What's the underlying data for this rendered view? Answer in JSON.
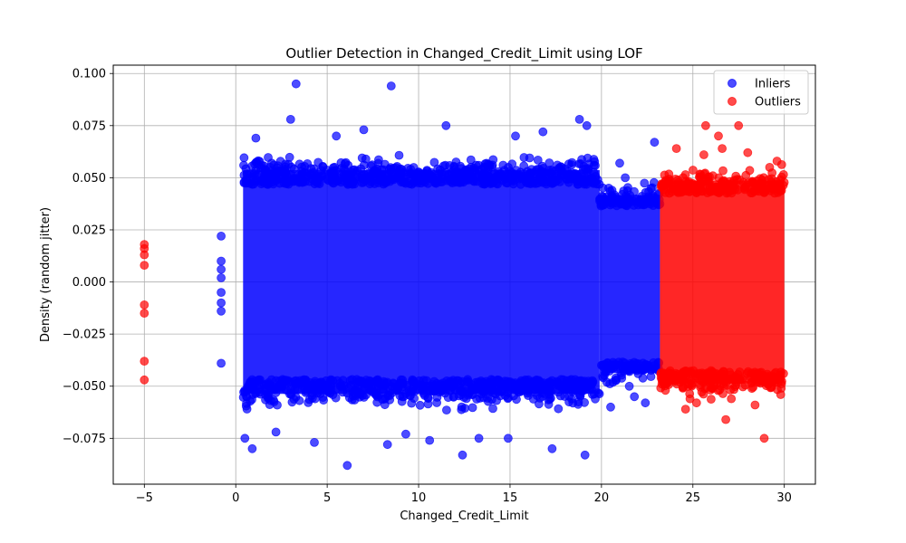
{
  "chart_data": {
    "type": "scatter",
    "title": "Outlier Detection in Changed_Credit_Limit using LOF",
    "xlabel": "Changed_Credit_Limit",
    "ylabel": "Density (random jitter)",
    "xlim": [
      -6.7,
      31.7
    ],
    "ylim": [
      -0.097,
      0.104
    ],
    "xticks": [
      -5,
      0,
      5,
      10,
      15,
      20,
      25,
      30
    ],
    "xtick_labels": [
      "−5",
      "0",
      "5",
      "10",
      "15",
      "20",
      "25",
      "30"
    ],
    "yticks": [
      -0.075,
      -0.05,
      -0.025,
      0.0,
      0.025,
      0.05,
      0.075,
      0.1
    ],
    "ytick_labels": [
      "−0.075",
      "−0.050",
      "−0.025",
      "0.000",
      "0.025",
      "0.050",
      "0.075",
      "0.100"
    ],
    "grid": true,
    "legend_position": "top-right",
    "series": [
      {
        "name": "Inliers",
        "color": "#0000ff",
        "dense_regions": [
          {
            "x_range": [
              0.4,
              19.9
            ],
            "y_range": [
              -0.055,
              0.055
            ]
          },
          {
            "x_range": [
              19.9,
              23.2
            ],
            "y_range": [
              -0.045,
              0.043
            ]
          }
        ],
        "points": [
          {
            "x": -0.8,
            "y": 0.022
          },
          {
            "x": -0.8,
            "y": 0.01
          },
          {
            "x": -0.8,
            "y": 0.006
          },
          {
            "x": -0.8,
            "y": 0.002
          },
          {
            "x": -0.8,
            "y": -0.005
          },
          {
            "x": -0.8,
            "y": -0.01
          },
          {
            "x": -0.8,
            "y": -0.014
          },
          {
            "x": -0.8,
            "y": -0.039
          },
          {
            "x": 3.3,
            "y": 0.095
          },
          {
            "x": 8.5,
            "y": 0.094
          },
          {
            "x": 18.8,
            "y": 0.078
          },
          {
            "x": 19.2,
            "y": 0.075
          },
          {
            "x": 3.0,
            "y": 0.078
          },
          {
            "x": 11.5,
            "y": 0.075
          },
          {
            "x": 0.5,
            "y": -0.075
          },
          {
            "x": 0.9,
            "y": -0.08
          },
          {
            "x": 6.1,
            "y": -0.088
          },
          {
            "x": 12.4,
            "y": -0.083
          },
          {
            "x": 19.1,
            "y": -0.083
          },
          {
            "x": 17.3,
            "y": -0.08
          },
          {
            "x": 4.3,
            "y": -0.077
          },
          {
            "x": 10.6,
            "y": -0.076
          },
          {
            "x": 14.9,
            "y": -0.075
          },
          {
            "x": 8.3,
            "y": -0.078
          },
          {
            "x": 22.9,
            "y": 0.067
          },
          {
            "x": 21.0,
            "y": 0.057
          },
          {
            "x": 20.5,
            "y": -0.06
          },
          {
            "x": 21.8,
            "y": -0.055
          },
          {
            "x": 22.4,
            "y": -0.058
          },
          {
            "x": 21.3,
            "y": 0.05
          },
          {
            "x": 1.1,
            "y": 0.069
          },
          {
            "x": 2.2,
            "y": -0.072
          },
          {
            "x": 7.0,
            "y": 0.073
          },
          {
            "x": 16.8,
            "y": 0.072
          },
          {
            "x": 13.3,
            "y": -0.075
          },
          {
            "x": 9.3,
            "y": -0.073
          },
          {
            "x": 5.5,
            "y": 0.07
          },
          {
            "x": 15.3,
            "y": 0.07
          }
        ]
      },
      {
        "name": "Outliers",
        "color": "#ff0000",
        "dense_regions": [
          {
            "x_range": [
              23.2,
              30.0
            ],
            "y_range": [
              -0.05,
              0.05
            ]
          }
        ],
        "points": [
          {
            "x": -5.0,
            "y": 0.018
          },
          {
            "x": -5.0,
            "y": 0.016
          },
          {
            "x": -5.0,
            "y": 0.013
          },
          {
            "x": -5.0,
            "y": 0.008
          },
          {
            "x": -5.0,
            "y": -0.011
          },
          {
            "x": -5.0,
            "y": -0.015
          },
          {
            "x": -5.0,
            "y": -0.038
          },
          {
            "x": -5.0,
            "y": -0.047
          },
          {
            "x": 25.7,
            "y": 0.075
          },
          {
            "x": 27.5,
            "y": 0.075
          },
          {
            "x": 26.4,
            "y": 0.07
          },
          {
            "x": 26.6,
            "y": 0.064
          },
          {
            "x": 24.1,
            "y": 0.064
          },
          {
            "x": 25.6,
            "y": 0.061
          },
          {
            "x": 28.0,
            "y": 0.062
          },
          {
            "x": 29.6,
            "y": 0.058
          },
          {
            "x": 26.8,
            "y": -0.066
          },
          {
            "x": 28.9,
            "y": -0.075
          },
          {
            "x": 28.4,
            "y": -0.059
          },
          {
            "x": 24.6,
            "y": -0.061
          },
          {
            "x": 23.5,
            "y": -0.052
          },
          {
            "x": 29.8,
            "y": -0.054
          },
          {
            "x": 25.2,
            "y": -0.058
          },
          {
            "x": 27.1,
            "y": -0.056
          },
          {
            "x": 29.2,
            "y": 0.055
          }
        ]
      }
    ]
  }
}
